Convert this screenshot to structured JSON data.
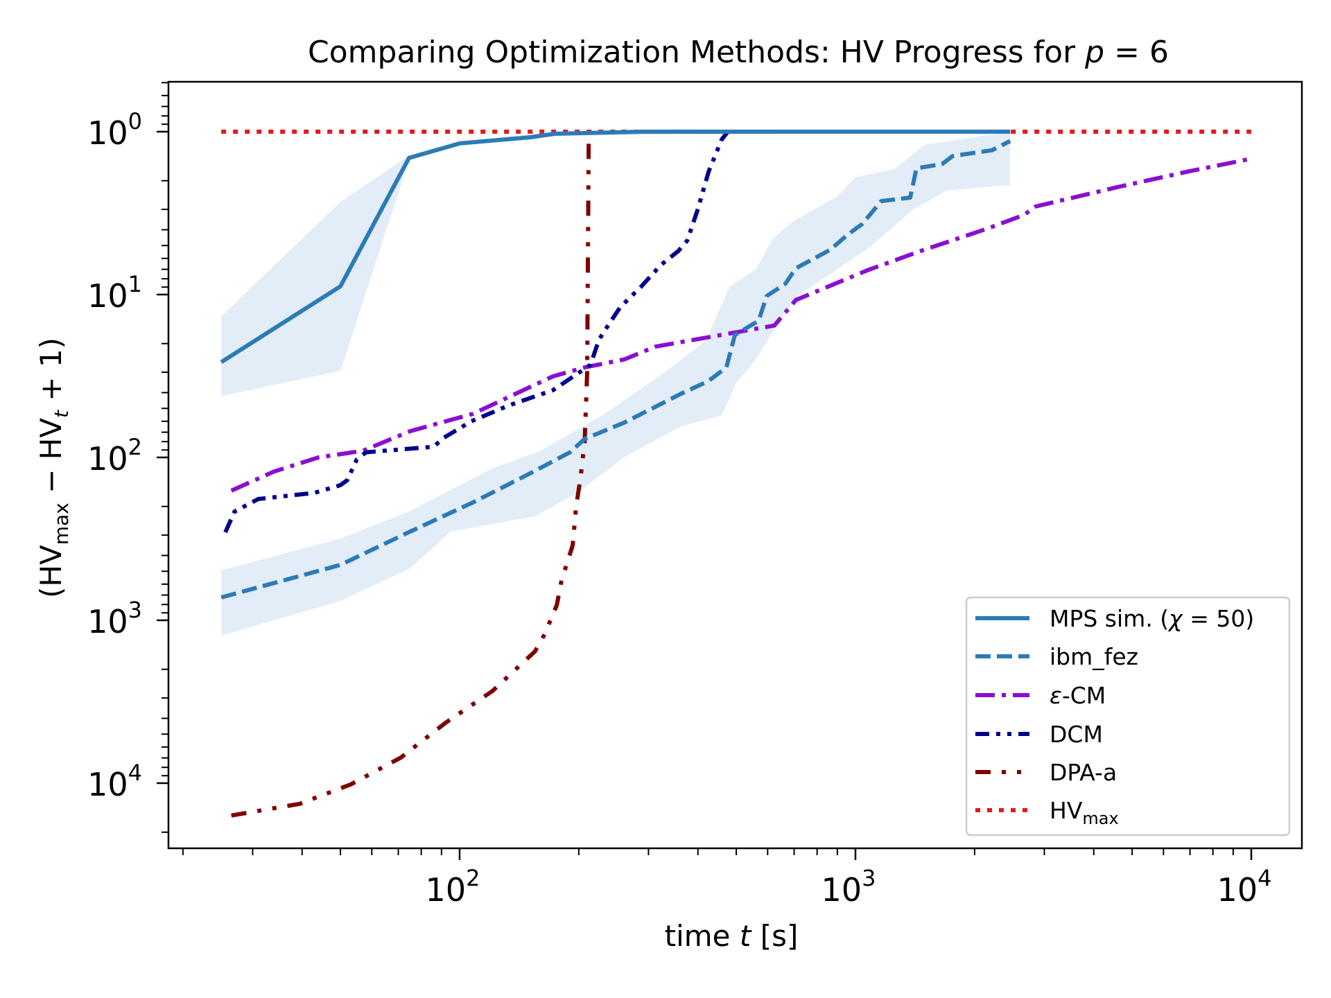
{
  "chart_data": {
    "type": "line",
    "title": "Comparing Optimization Methods: HV Progress for p = 6",
    "title_parts": {
      "main": "Comparing Optimization Methods: HV Progress for ",
      "var": "p",
      "rest": " = 6"
    },
    "xlabel": "time t [s]",
    "xlabel_parts": {
      "main": "time ",
      "var": "t",
      "rest": " [s]"
    },
    "ylabel": "(HV_max − HV_t + 1)",
    "ylabel_parts": {
      "open": "(HV",
      "sub1": "max",
      "mid": " − HV",
      "sub2": "t",
      "close": " + 1)"
    },
    "xscale": "log",
    "yscale": "log",
    "y_inverted": true,
    "xlim": [
      18.4,
      13500
    ],
    "ylim": [
      24900,
      0.494
    ],
    "x_ticks": [
      {
        "value": 100,
        "base": "10",
        "exp": "2"
      },
      {
        "value": 1000,
        "base": "10",
        "exp": "3"
      },
      {
        "value": 10000,
        "base": "10",
        "exp": "4"
      }
    ],
    "y_ticks": [
      {
        "value": 1,
        "base": "10",
        "exp": "0"
      },
      {
        "value": 10,
        "base": "10",
        "exp": "1"
      },
      {
        "value": 100,
        "base": "10",
        "exp": "2"
      },
      {
        "value": 1000,
        "base": "10",
        "exp": "3"
      },
      {
        "value": 10000,
        "base": "10",
        "exp": "4"
      }
    ],
    "grid": false,
    "legend_position": "lower-right",
    "series": [
      {
        "name": "MPS sim. (χ = 50)",
        "legend": {
          "main": "MPS sim. (",
          "var": "χ",
          "rest": " = 50)"
        },
        "color": "#2c7bb6",
        "style": "solid",
        "points": [
          [
            25,
            26
          ],
          [
            50,
            8.9
          ],
          [
            74.5,
            1.45
          ],
          [
            100,
            1.18
          ],
          [
            152,
            1.08
          ],
          [
            174,
            1.03
          ],
          [
            290,
            1.0
          ],
          [
            2460,
            1.0
          ]
        ],
        "band": {
          "color": "#dce9f5",
          "lower": [
            [
              25,
              13.6
            ],
            [
              50,
              2.7
            ],
            [
              74.5,
              1.4
            ],
            [
              100,
              1.15
            ],
            [
              174,
              1.0
            ],
            [
              2460,
              1.0
            ]
          ],
          "upper": [
            [
              25,
              42
            ],
            [
              50,
              29.4
            ],
            [
              74.5,
              1.5
            ],
            [
              100,
              1.22
            ],
            [
              174,
              1.06
            ],
            [
              2460,
              1.0
            ]
          ]
        }
      },
      {
        "name": "ibm_fez",
        "legend": {
          "main": "ibm_fez"
        },
        "color": "#2c7bb6",
        "style": "dashed",
        "points": [
          [
            25,
            724
          ],
          [
            50,
            457
          ],
          [
            73,
            294
          ],
          [
            108,
            189
          ],
          [
            151,
            125
          ],
          [
            190,
            93
          ],
          [
            207,
            77
          ],
          [
            261,
            61
          ],
          [
            363,
            40.6
          ],
          [
            425,
            34
          ],
          [
            472,
            28
          ],
          [
            496,
            17.7
          ],
          [
            569,
            14.5
          ],
          [
            597,
            10.2
          ],
          [
            665,
            8.6
          ],
          [
            707,
            6.9
          ],
          [
            865,
            5.3
          ],
          [
            949,
            4.35
          ],
          [
            1041,
            3.68
          ],
          [
            1162,
            2.67
          ],
          [
            1375,
            2.54
          ],
          [
            1426,
            1.68
          ],
          [
            1655,
            1.58
          ],
          [
            1760,
            1.41
          ],
          [
            2213,
            1.3
          ],
          [
            2460,
            1.14
          ]
        ],
        "band": {
          "color": "#dce9f5",
          "lower": [
            [
              25,
              494
            ],
            [
              50,
              315
            ],
            [
              75,
              213
            ],
            [
              120,
              118
            ],
            [
              160,
              91
            ],
            [
              230,
              55
            ],
            [
              330,
              30
            ],
            [
              420,
              19
            ],
            [
              480,
              9
            ],
            [
              560,
              7
            ],
            [
              620,
              4.5
            ],
            [
              700,
              3.5
            ],
            [
              900,
              2.5
            ],
            [
              1000,
              1.9
            ],
            [
              1250,
              1.7
            ],
            [
              1500,
              1.2
            ],
            [
              2460,
              1.0
            ]
          ],
          "upper": [
            [
              25,
              1242
            ],
            [
              50,
              760
            ],
            [
              75,
              479
            ],
            [
              95,
              285
            ],
            [
              155,
              230
            ],
            [
              200,
              163
            ],
            [
              260,
              100
            ],
            [
              360,
              65
            ],
            [
              460,
              55
            ],
            [
              500,
              35
            ],
            [
              560,
              25
            ],
            [
              650,
              14
            ],
            [
              720,
              10
            ],
            [
              900,
              7
            ],
            [
              1100,
              5
            ],
            [
              1400,
              3
            ],
            [
              1700,
              2.3
            ],
            [
              2400,
              2.13
            ],
            [
              2460,
              2.13
            ]
          ]
        }
      },
      {
        "name": "ε-CM",
        "legend": {
          "var": "ε",
          "rest": "-CM"
        },
        "color": "#8a0fd0",
        "style": "dashdot",
        "points": [
          [
            26.5,
            160
          ],
          [
            34,
            122
          ],
          [
            44,
            100
          ],
          [
            57,
            91
          ],
          [
            75,
            69
          ],
          [
            108,
            54
          ],
          [
            172,
            31.8
          ],
          [
            207,
            28
          ],
          [
            261,
            25
          ],
          [
            312,
            20.9
          ],
          [
            496,
            17.1
          ],
          [
            624,
            15.5
          ],
          [
            707,
            10.8
          ],
          [
            1072,
            7.1
          ],
          [
            1462,
            5.4
          ],
          [
            2153,
            3.94
          ],
          [
            2668,
            3.24
          ],
          [
            2850,
            2.88
          ],
          [
            4590,
            2.19
          ],
          [
            6980,
            1.75
          ],
          [
            9930,
            1.47
          ]
        ]
      },
      {
        "name": "DCM",
        "legend": {
          "main": "DCM"
        },
        "color": "#00008b",
        "style": "dashdotdot",
        "points": [
          [
            25.6,
            288
          ],
          [
            27,
            215
          ],
          [
            31,
            180
          ],
          [
            43,
            165
          ],
          [
            50,
            148
          ],
          [
            52,
            138
          ],
          [
            55,
            103
          ],
          [
            58,
            93
          ],
          [
            86,
            86
          ],
          [
            91,
            76
          ],
          [
            107,
            60
          ],
          [
            133,
            48
          ],
          [
            172,
            38.7
          ],
          [
            201,
            30
          ],
          [
            214,
            27
          ],
          [
            225,
            18.9
          ],
          [
            240,
            14.8
          ],
          [
            255,
            11.9
          ],
          [
            288,
            8.9
          ],
          [
            322,
            6.6
          ],
          [
            357,
            5.4
          ],
          [
            376,
            4.66
          ],
          [
            399,
            3.03
          ],
          [
            426,
            1.75
          ],
          [
            459,
            1.12
          ],
          [
            476,
            1.0
          ]
        ]
      },
      {
        "name": "DPA-a",
        "legend": {
          "main": "DPA-a"
        },
        "color": "#800000",
        "style": "loosedashdot",
        "points": [
          [
            26.5,
            15800
          ],
          [
            39.4,
            13400
          ],
          [
            53,
            10200
          ],
          [
            71,
            6970
          ],
          [
            92,
            4270
          ],
          [
            121,
            2720
          ],
          [
            155,
            1553
          ],
          [
            164,
            1217
          ],
          [
            176,
            806
          ],
          [
            181,
            567
          ],
          [
            193,
            347
          ],
          [
            197,
            199
          ],
          [
            202,
            134
          ],
          [
            207,
            80
          ],
          [
            210,
            30
          ],
          [
            211,
            5
          ],
          [
            212,
            1.0
          ]
        ]
      },
      {
        "name": "HV_max",
        "legend": {
          "main": "HV",
          "sub": "max"
        },
        "color": "#e31a1c",
        "style": "dotted",
        "points": [
          [
            25,
            1
          ],
          [
            10000,
            1
          ]
        ]
      }
    ]
  }
}
